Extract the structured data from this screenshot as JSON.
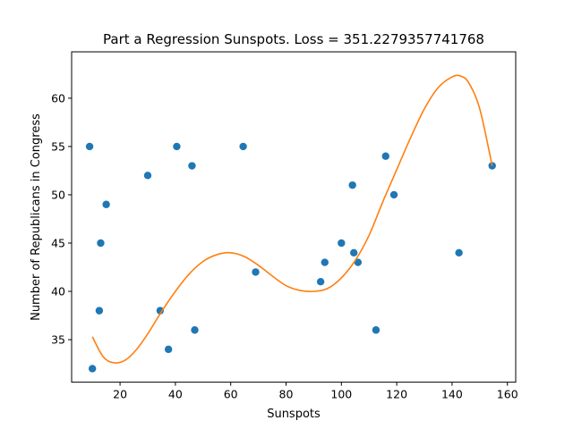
{
  "chart_data": {
    "type": "scatter",
    "title": "Part a Regression Sunspots. Loss = 351.2279357741768",
    "xlabel": "Sunspots",
    "ylabel": "Number of Republicans in Congress",
    "xlim": [
      2.5,
      163
    ],
    "ylim": [
      30.6,
      64.8
    ],
    "x_ticks": [
      20,
      40,
      60,
      80,
      100,
      120,
      140,
      160
    ],
    "y_ticks": [
      35,
      40,
      45,
      50,
      55,
      60
    ],
    "grid": false,
    "colors": {
      "points": "#1f77b4",
      "curve": "#ff7f0e"
    },
    "series": [
      {
        "kind": "points",
        "x": [
          9,
          10,
          12.5,
          13,
          15,
          30,
          34.5,
          37.5,
          40.5,
          46,
          47,
          64.5,
          69,
          92.5,
          94,
          100,
          104,
          104.5,
          106,
          112.5,
          116,
          119,
          142.5,
          154.5
        ],
        "y": [
          55,
          32,
          38,
          45,
          49,
          52,
          38,
          34,
          55,
          53,
          36,
          55,
          42,
          41,
          43,
          45,
          51,
          44,
          43,
          36,
          54,
          50,
          44,
          53
        ]
      },
      {
        "kind": "curve",
        "x": [
          10,
          14,
          18,
          22,
          26,
          30,
          35,
          40,
          45,
          50,
          55,
          60,
          65,
          70,
          75,
          80,
          85,
          90,
          95,
          100,
          105,
          110,
          115,
          120,
          125,
          130,
          135,
          140,
          143,
          146,
          150,
          154.5
        ],
        "y": [
          35.3,
          33.2,
          32.6,
          32.9,
          34.0,
          35.6,
          37.9,
          40.0,
          41.8,
          43.1,
          43.8,
          44.0,
          43.6,
          42.7,
          41.6,
          40.6,
          40.1,
          40.0,
          40.3,
          41.4,
          43.2,
          45.8,
          49.3,
          52.6,
          55.9,
          58.9,
          61.1,
          62.2,
          62.3,
          61.6,
          58.9,
          53.0
        ]
      }
    ]
  }
}
